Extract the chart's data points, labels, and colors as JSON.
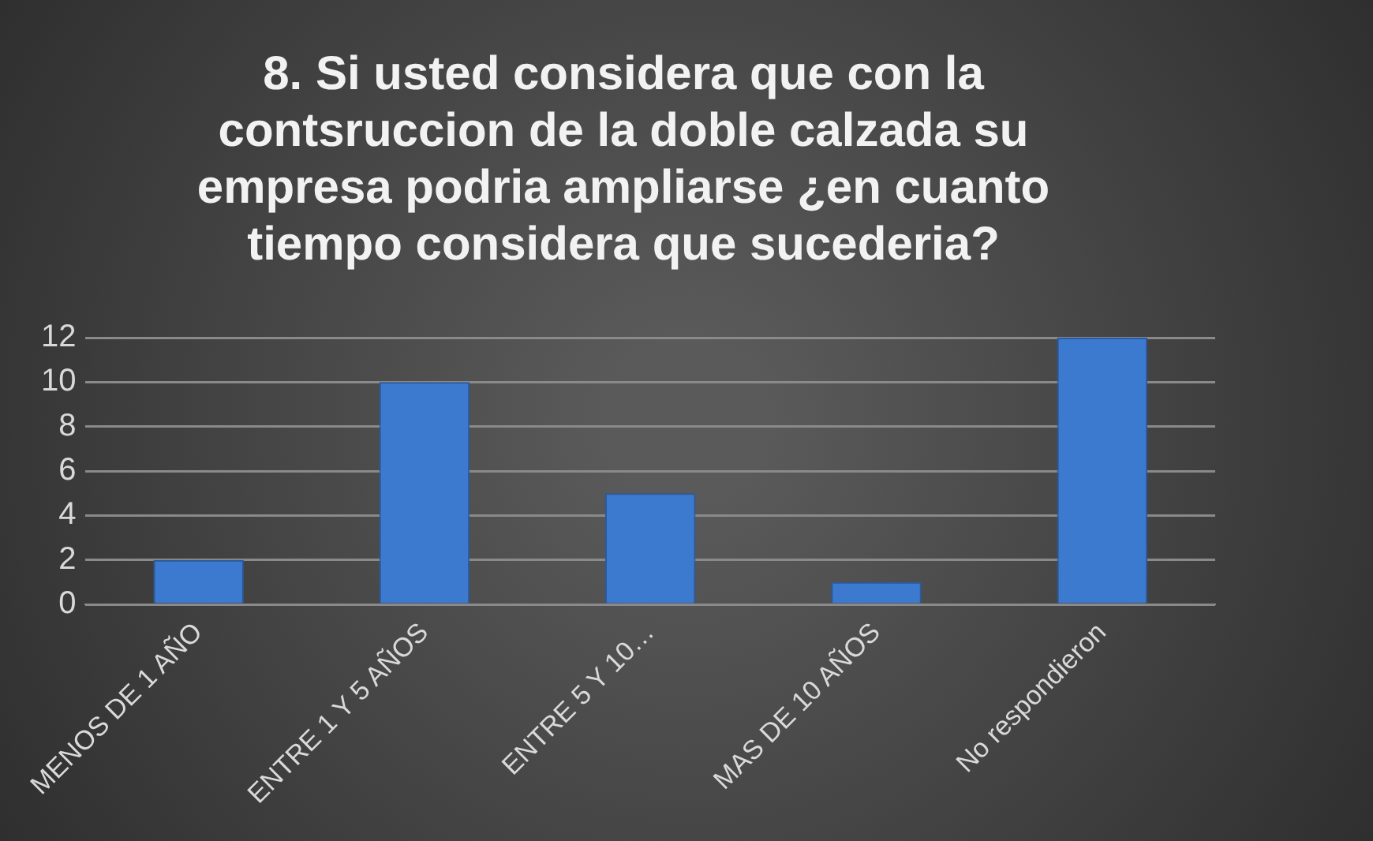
{
  "chart_data": {
    "type": "bar",
    "title": "8. Si usted considera que con la contsruccion de la doble calzada su empresa podria ampliarse ¿en cuanto tiempo considera que sucederia?",
    "categories": [
      "MENOS DE 1 AÑO",
      "ENTRE 1 Y 5 AÑOS",
      "ENTRE 5 Y 10…",
      "MAS DE 10 AÑOS",
      "No respondieron"
    ],
    "values": [
      2,
      10,
      5,
      1,
      12
    ],
    "color": "#3c7ad0",
    "ylim": [
      0,
      12
    ],
    "yticks": [
      0,
      2,
      4,
      6,
      8,
      10,
      12
    ],
    "grid": "y"
  }
}
